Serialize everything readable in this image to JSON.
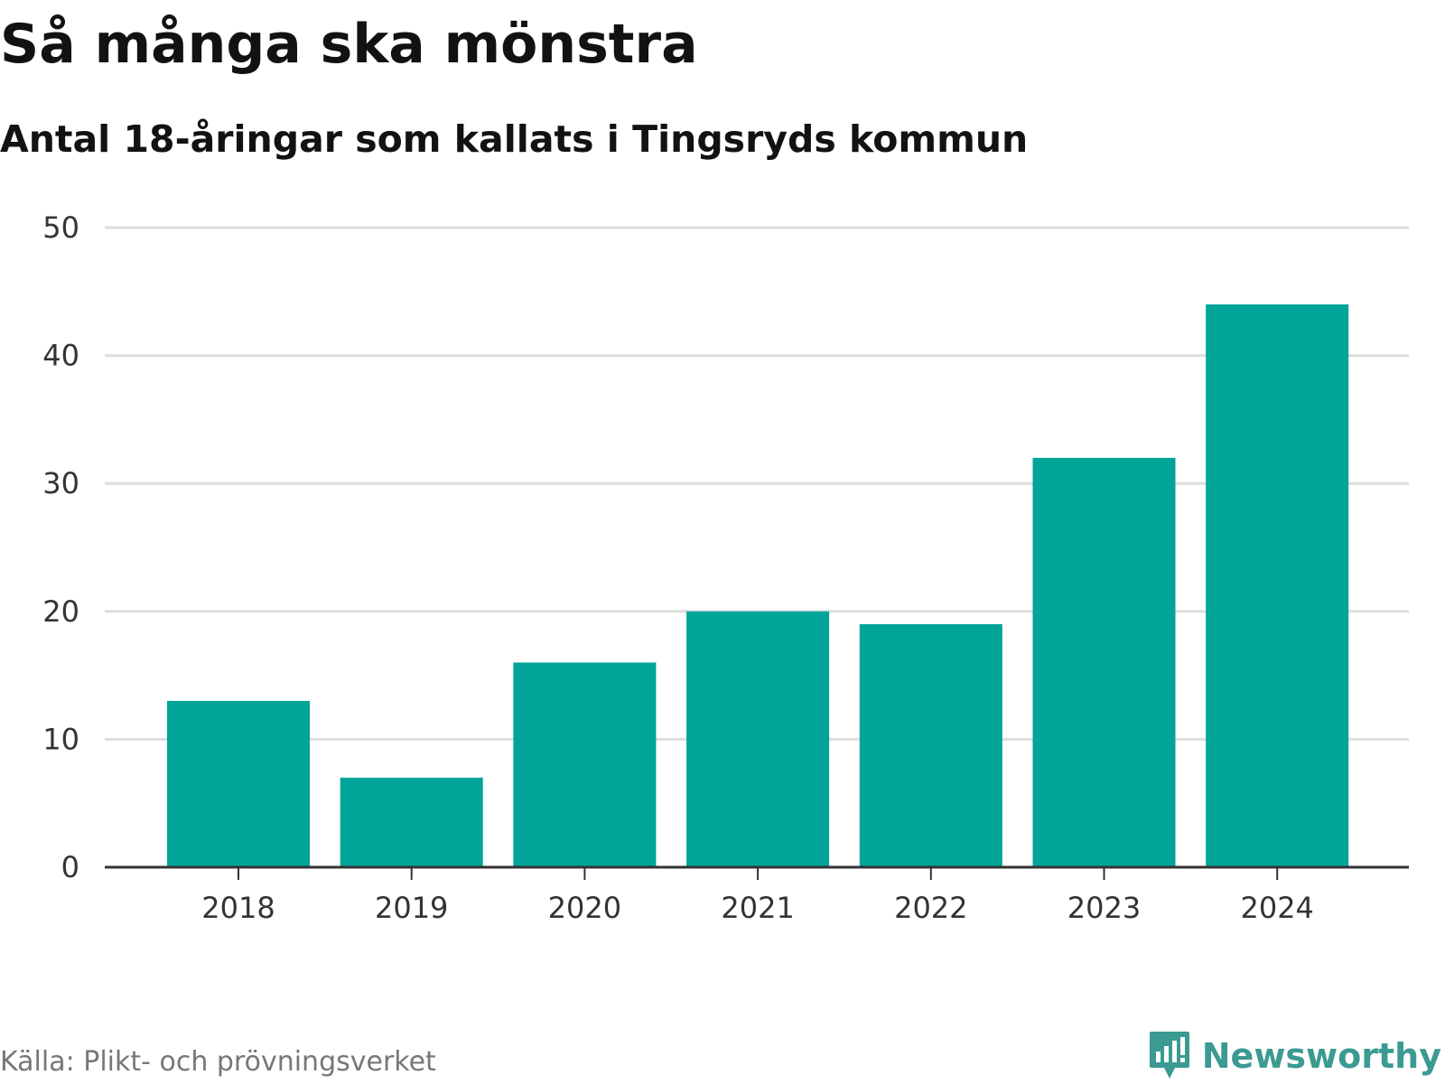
{
  "header": {
    "title": "Så många ska mönstra",
    "subtitle": "Antal 18-åringar som kallats i Tingsryds kommun"
  },
  "footer": {
    "source": "Källa: Plikt- och prövningsverket",
    "brand": "Newsworthy"
  },
  "colors": {
    "bar": "#00a499",
    "grid": "#dddddd",
    "axis": "#333333",
    "brand": "#3b9a91"
  },
  "chart_data": {
    "type": "bar",
    "title": "Så många ska mönstra",
    "subtitle": "Antal 18-åringar som kallats i Tingsryds kommun",
    "xlabel": "",
    "ylabel": "",
    "categories": [
      "2018",
      "2019",
      "2020",
      "2021",
      "2022",
      "2023",
      "2024"
    ],
    "values": [
      13,
      7,
      16,
      20,
      19,
      32,
      44
    ],
    "ylim": [
      0,
      50
    ],
    "yticks": [
      0,
      10,
      20,
      30,
      40,
      50
    ],
    "grid": true,
    "legend": "none"
  }
}
